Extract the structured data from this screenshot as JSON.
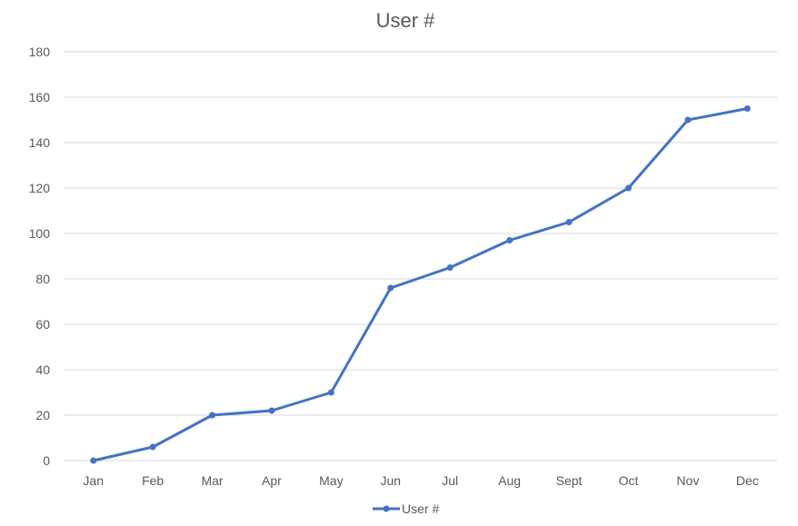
{
  "chart_data": {
    "type": "line",
    "title": "User #",
    "xlabel": "",
    "ylabel": "",
    "categories": [
      "Jan",
      "Feb",
      "Mar",
      "Apr",
      "May",
      "Jun",
      "Jul",
      "Aug",
      "Sept",
      "Oct",
      "Nov",
      "Dec"
    ],
    "series": [
      {
        "name": "User #",
        "values": [
          0,
          6,
          20,
          22,
          30,
          76,
          85,
          97,
          105,
          120,
          150,
          155
        ],
        "color": "#4472C4"
      }
    ],
    "ylim": [
      0,
      180
    ],
    "yticks": [
      "0",
      "20",
      "40",
      "60",
      "80",
      "100",
      "120",
      "140",
      "160",
      "180"
    ],
    "grid": true,
    "legend": "bottom"
  }
}
